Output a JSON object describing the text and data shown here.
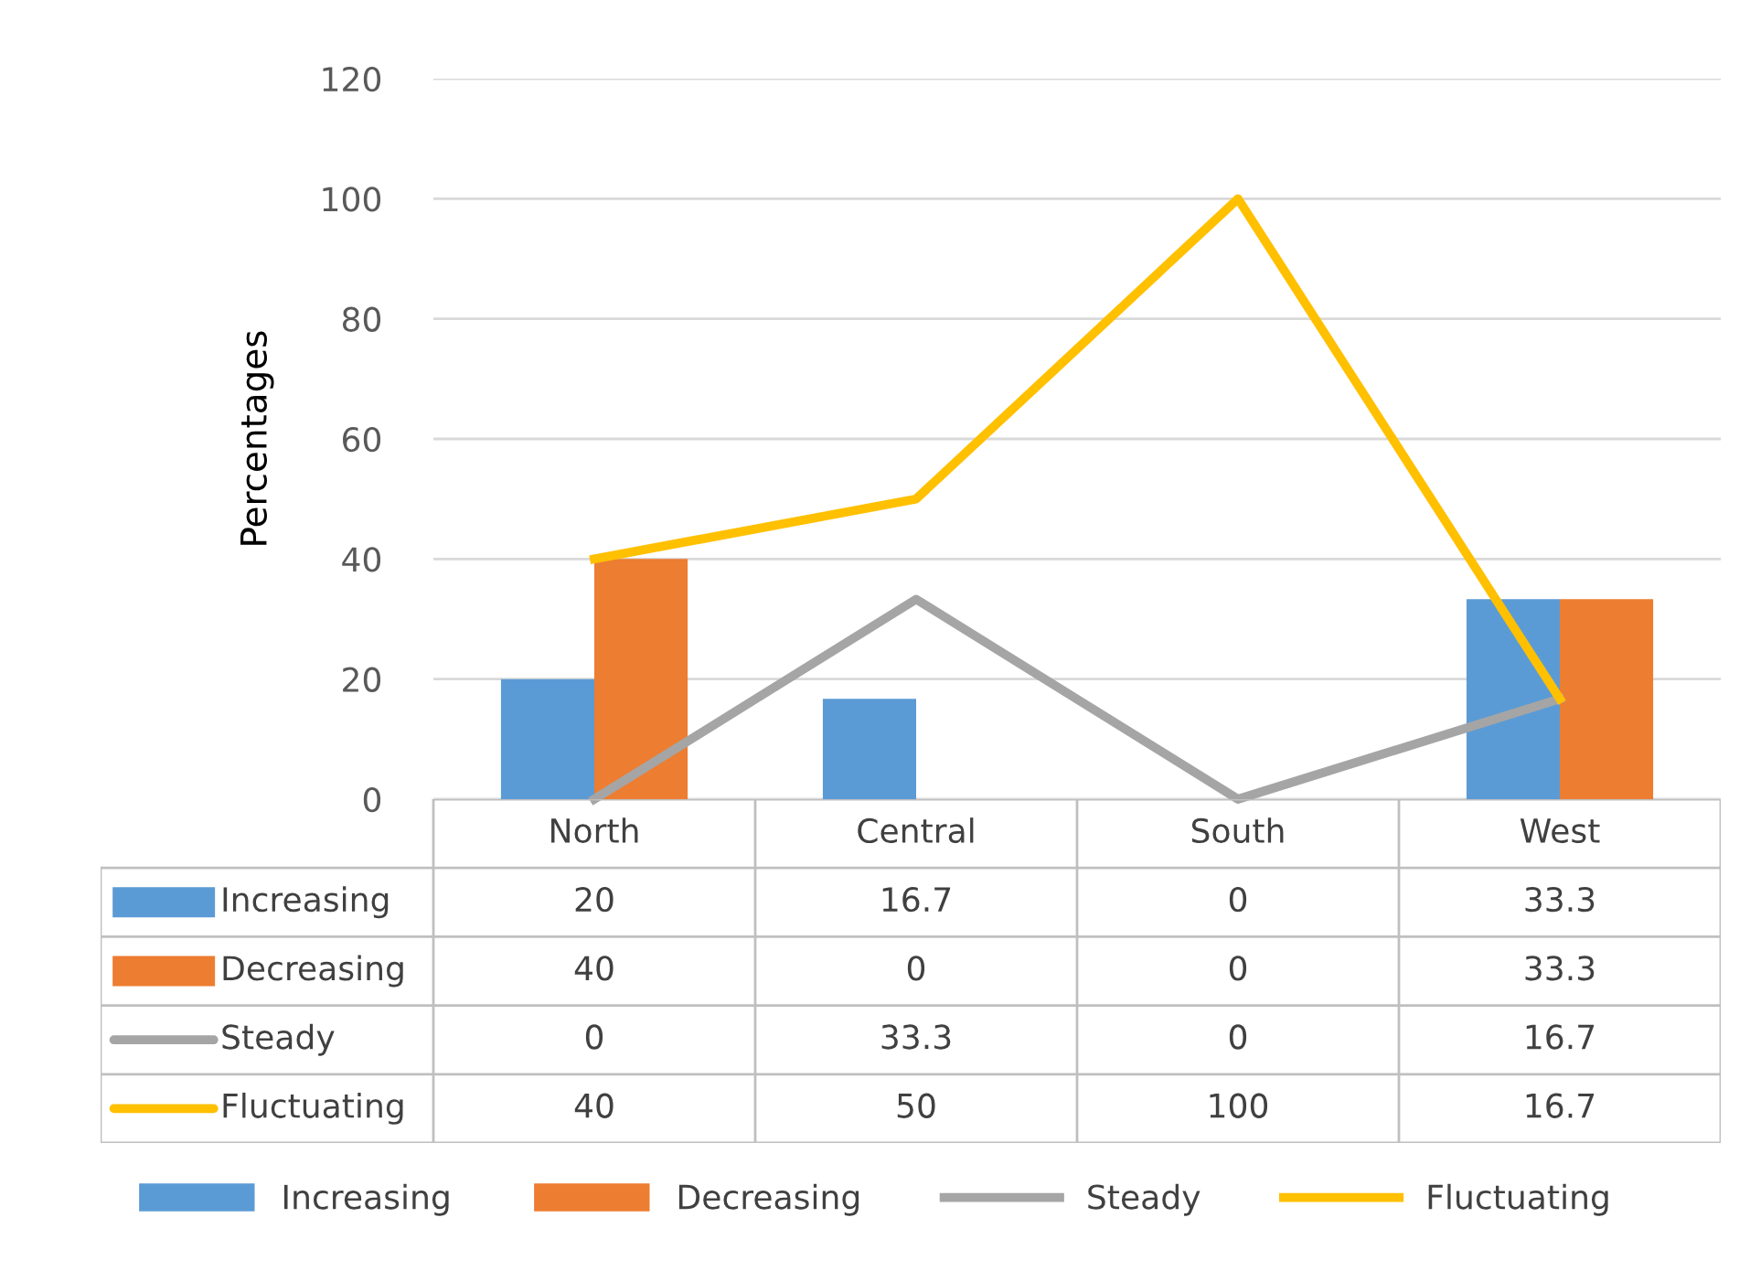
{
  "chart_data": {
    "type": "bar",
    "ylabel": "Percentages",
    "categories": [
      "North",
      "Central",
      "South",
      "West"
    ],
    "series": [
      {
        "name": "Increasing",
        "color": "#5b9bd5",
        "values": [
          20,
          16.7,
          0,
          33.3
        ]
      },
      {
        "name": "Decreasing",
        "color": "#ed7d31",
        "values": [
          40,
          0,
          0,
          33.3
        ]
      },
      {
        "name": "Steady",
        "type": "line",
        "color": "#a5a5a5",
        "values": [
          0,
          33.3,
          0,
          16.7
        ]
      },
      {
        "name": "Fluctuating",
        "type": "line",
        "color": "#ffc000",
        "values": [
          40,
          50,
          100,
          16.7
        ]
      }
    ],
    "ylim": [
      0,
      120
    ],
    "yticks": [
      0,
      20,
      40,
      60,
      80,
      100,
      120
    ],
    "grid": "y",
    "legend": "bottom",
    "data_labels": true,
    "marker": "none",
    "line_style": "solid"
  }
}
